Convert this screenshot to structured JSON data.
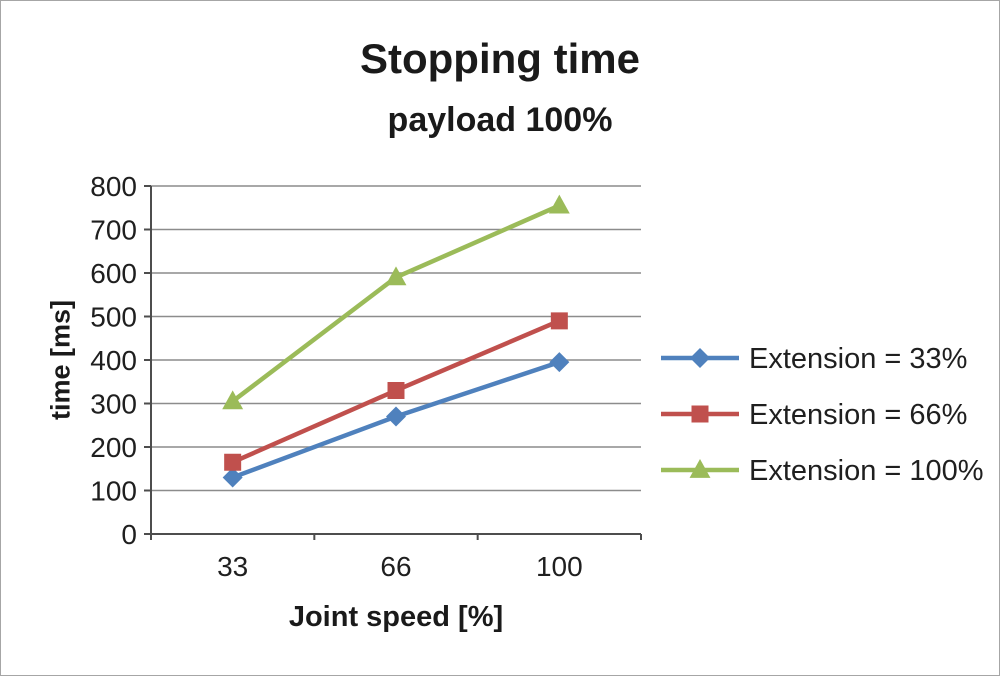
{
  "chart_data": {
    "type": "line",
    "title": "Stopping time",
    "subtitle": "payload 100%",
    "xlabel": "Joint speed [%]",
    "ylabel": "time [ms]",
    "categories": [
      "33",
      "66",
      "100"
    ],
    "series": [
      {
        "name": "Extension = 33%",
        "color": "#4f81bd",
        "marker": "diamond",
        "values": [
          130,
          270,
          395
        ]
      },
      {
        "name": "Extension = 66%",
        "color": "#c0504d",
        "marker": "square",
        "values": [
          165,
          330,
          490
        ]
      },
      {
        "name": "Extension = 100%",
        "color": "#9bbb59",
        "marker": "triangle",
        "values": [
          305,
          590,
          755
        ]
      }
    ],
    "ylim": [
      0,
      800
    ],
    "ytick_step": 100,
    "grid": true,
    "legend_position": "right"
  },
  "colors": {
    "text": "#1f1f1f",
    "grid": "#8c8c8c",
    "axis": "#4d4d4d",
    "frame_border": "#a6a6a6",
    "background": "#ffffff"
  }
}
